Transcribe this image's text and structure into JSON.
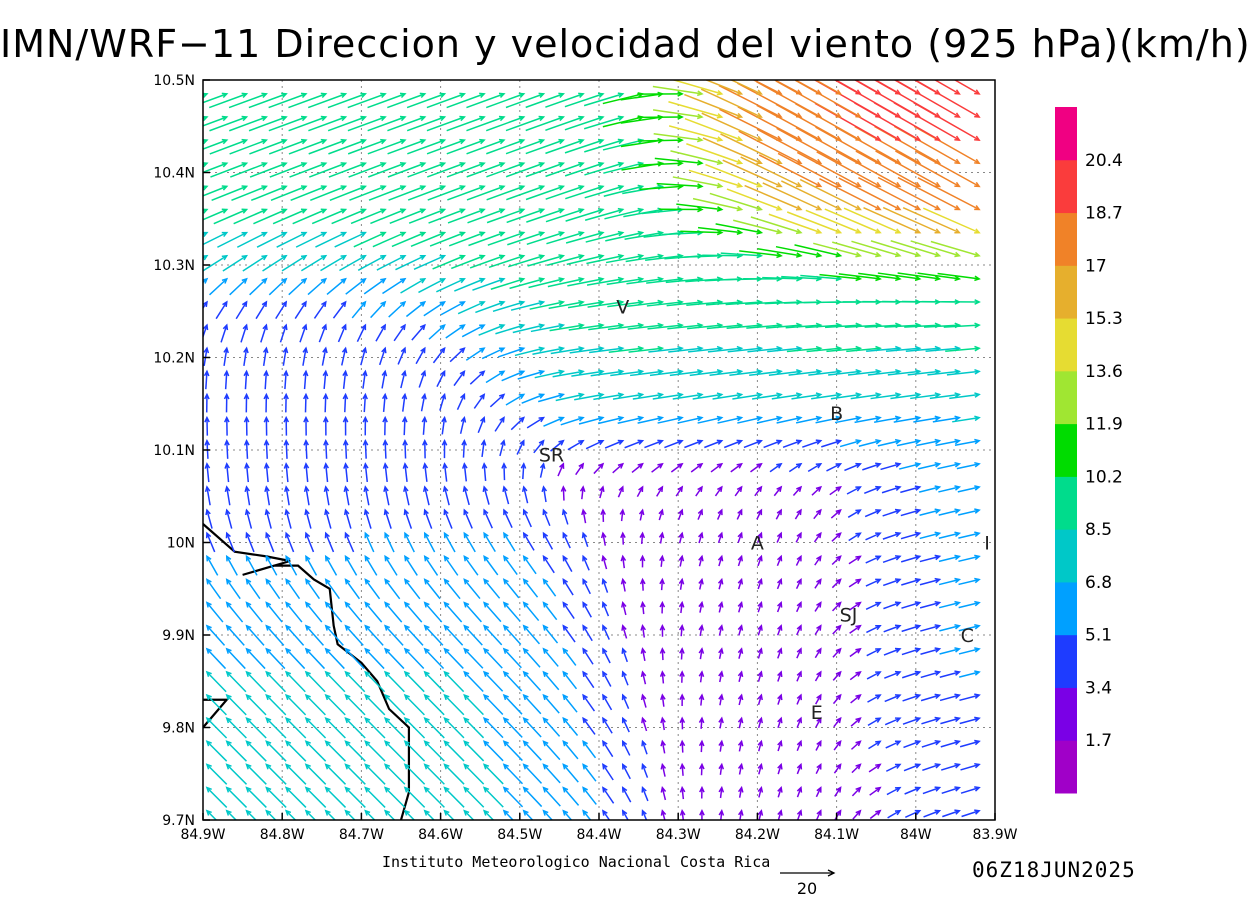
{
  "title": "IMN/WRF−11 Direccion y velocidad del viento (925 hPa)(km/h)",
  "credit": "Instituto Meteorologico Nacional Costa Rica",
  "timestamp": "06Z18JUN2025",
  "chart_data": {
    "type": "vector-field",
    "map_extent": {
      "lon": [
        -84.9,
        -83.9
      ],
      "lat": [
        9.7,
        10.5
      ]
    },
    "x_ticks": [
      {
        "value": -84.9,
        "label": "84.9W"
      },
      {
        "value": -84.8,
        "label": "84.8W"
      },
      {
        "value": -84.7,
        "label": "84.7W"
      },
      {
        "value": -84.6,
        "label": "84.6W"
      },
      {
        "value": -84.5,
        "label": "84.5W"
      },
      {
        "value": -84.4,
        "label": "84.4W"
      },
      {
        "value": -84.3,
        "label": "84.3W"
      },
      {
        "value": -84.2,
        "label": "84.2W"
      },
      {
        "value": -84.1,
        "label": "84.1W"
      },
      {
        "value": -84.0,
        "label": "84W"
      },
      {
        "value": -83.9,
        "label": "83.9W"
      }
    ],
    "y_ticks": [
      {
        "value": 10.5,
        "label": "10.5N"
      },
      {
        "value": 10.4,
        "label": "10.4N"
      },
      {
        "value": 10.3,
        "label": "10.3N"
      },
      {
        "value": 10.2,
        "label": "10.2N"
      },
      {
        "value": 10.1,
        "label": "10.1N"
      },
      {
        "value": 10.0,
        "label": "10N"
      },
      {
        "value": 9.9,
        "label": "9.9N"
      },
      {
        "value": 9.8,
        "label": "9.8N"
      },
      {
        "value": 9.7,
        "label": "9.7N"
      }
    ],
    "grid": true,
    "colorbar": {
      "labels": [
        "20.4",
        "18.7",
        "17",
        "15.3",
        "13.6",
        "11.9",
        "10.2",
        "8.5",
        "6.8",
        "5.1",
        "3.4",
        "1.7"
      ],
      "thresholds": [
        1.7,
        3.4,
        5.1,
        6.8,
        8.5,
        10.2,
        11.9,
        13.6,
        15.3,
        17,
        18.7,
        20.4
      ],
      "colors": [
        "#a000c8",
        "#7a00e6",
        "#1e3cff",
        "#00a0ff",
        "#00c8c8",
        "#00dc8c",
        "#00dc00",
        "#a0e632",
        "#e6dc32",
        "#e6af2d",
        "#f08228",
        "#fa3c3c",
        "#f00082"
      ]
    },
    "reference_vector": {
      "label": "20",
      "speed": 20
    },
    "places": [
      {
        "label": "V",
        "lon": -84.37,
        "lat": 10.255
      },
      {
        "label": "B",
        "lon": -84.1,
        "lat": 10.14
      },
      {
        "label": "SR",
        "lon": -84.46,
        "lat": 10.095
      },
      {
        "label": "A",
        "lon": -84.2,
        "lat": 10.0
      },
      {
        "label": "I",
        "lon": -83.91,
        "lat": 10.0
      },
      {
        "label": "SJ",
        "lon": -84.085,
        "lat": 9.922
      },
      {
        "label": "C",
        "lon": -83.935,
        "lat": 9.9
      },
      {
        "label": "E",
        "lon": -84.125,
        "lat": 9.817
      }
    ],
    "coastline": [
      [
        -84.9,
        10.02
      ],
      [
        -84.86,
        9.99
      ],
      [
        -84.82,
        9.985
      ],
      [
        -84.79,
        9.98
      ],
      [
        -84.85,
        9.965
      ],
      [
        -84.81,
        9.975
      ],
      [
        -84.78,
        9.975
      ],
      [
        -84.76,
        9.96
      ],
      [
        -84.74,
        9.95
      ],
      [
        -84.735,
        9.91
      ],
      [
        -84.73,
        9.89
      ],
      [
        -84.7,
        9.87
      ],
      [
        -84.68,
        9.85
      ],
      [
        -84.665,
        9.82
      ],
      [
        -84.64,
        9.8
      ],
      [
        -84.64,
        9.77
      ],
      [
        -84.64,
        9.73
      ],
      [
        -84.65,
        9.7
      ]
    ],
    "coastline_2": [
      [
        -84.9,
        9.8
      ],
      [
        -84.87,
        9.83
      ],
      [
        -84.9,
        9.83
      ]
    ],
    "field": {
      "rows_lat": [
        9.7,
        9.72,
        9.745,
        9.77,
        9.795,
        9.82,
        9.845,
        9.87,
        9.895,
        9.92,
        9.945,
        9.97,
        9.995,
        10.02,
        10.045,
        10.07,
        10.095,
        10.12,
        10.145,
        10.17,
        10.195,
        10.22,
        10.245,
        10.27,
        10.295,
        10.32,
        10.345,
        10.37,
        10.395,
        10.42,
        10.445,
        10.47,
        10.5
      ],
      "regions": [
        {
          "lon": [
            -84.9,
            -84.4
          ],
          "lat": [
            9.7,
            10.0
          ],
          "dir_deg": 135,
          "speed": 7
        },
        {
          "lon": [
            -84.9,
            -84.55
          ],
          "lat": [
            10.0,
            10.27
          ],
          "dir_deg": 180,
          "speed": 4.5
        },
        {
          "lon": [
            -84.4,
            -84.0
          ],
          "lat": [
            9.75,
            10.1
          ],
          "dir_deg": 200,
          "speed": 2.5
        },
        {
          "lon": [
            -84.05,
            -83.9
          ],
          "lat": [
            9.8,
            10.1
          ],
          "dir_deg": 260,
          "speed": 6
        },
        {
          "lon": [
            -84.5,
            -83.9
          ],
          "lat": [
            10.15,
            10.3
          ],
          "dir_deg": 265,
          "speed": 9
        },
        {
          "lon": [
            -84.9,
            -84.3
          ],
          "lat": [
            10.3,
            10.5
          ],
          "dir_deg": 250,
          "speed": 10
        },
        {
          "lon": [
            -84.2,
            -83.9
          ],
          "lat": [
            10.35,
            10.5
          ],
          "dir_deg": 300,
          "speed": 19
        }
      ]
    }
  }
}
